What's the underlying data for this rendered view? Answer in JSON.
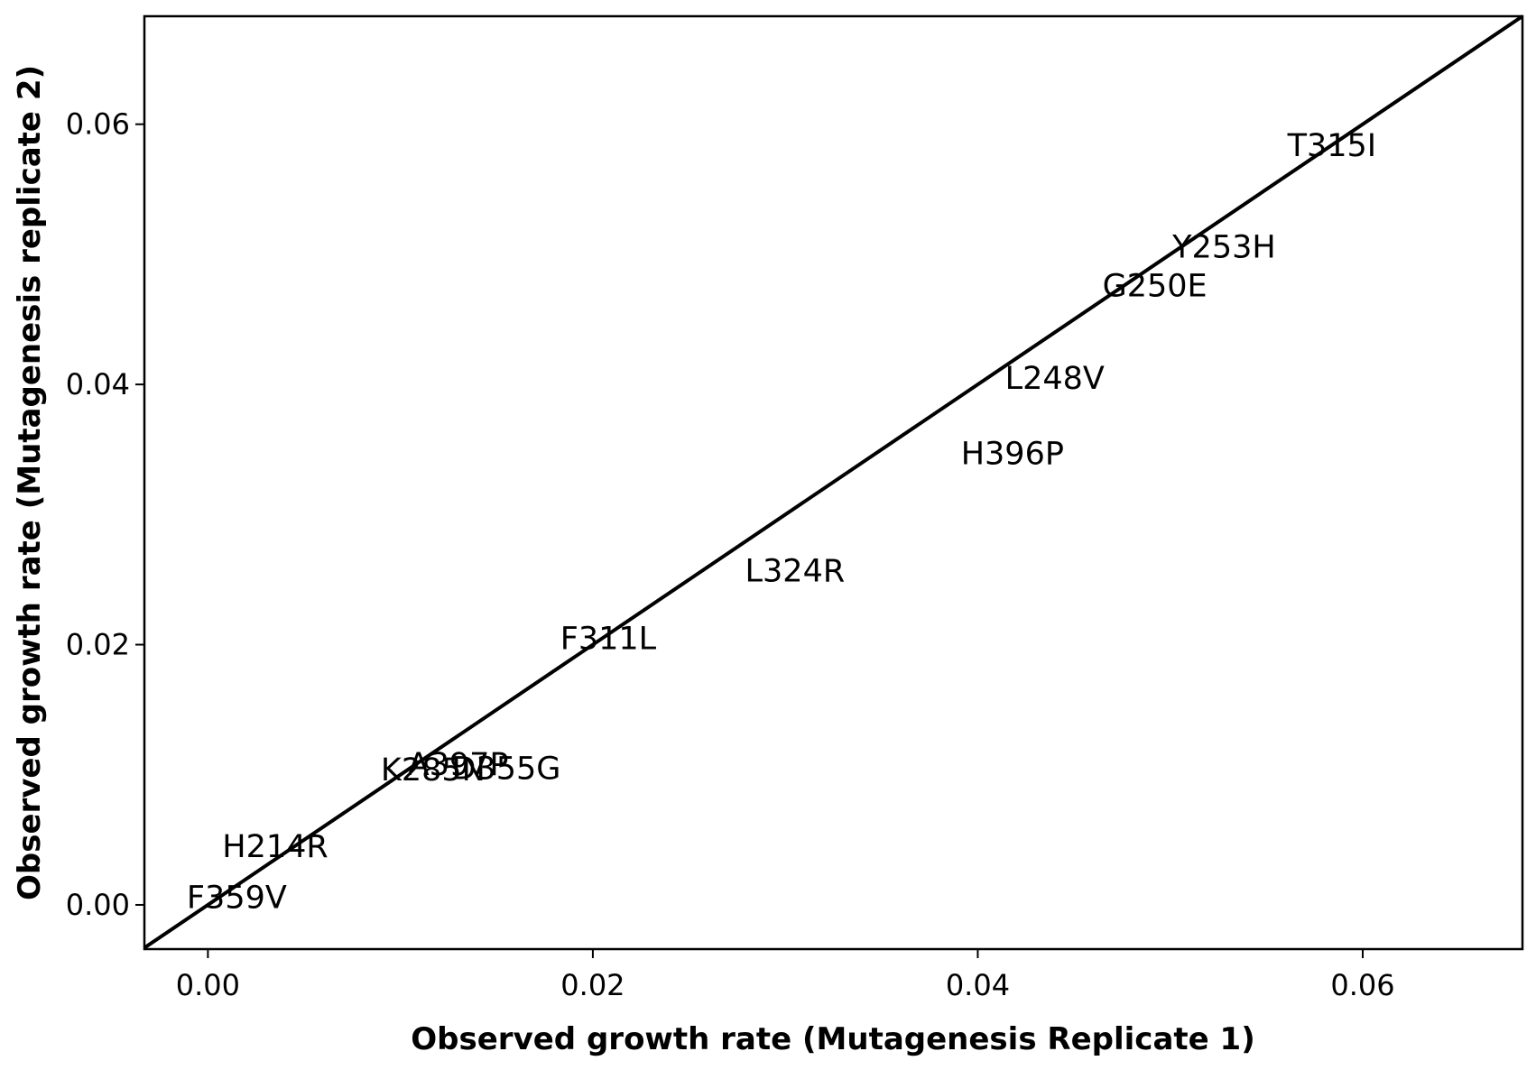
{
  "chart_data": {
    "type": "scatter",
    "title": "",
    "xlabel": "Observed growth rate (Mutagenesis Replicate 1)",
    "ylabel": "Observed growth rate (Mutagenesis replicate 2)",
    "xlim": [
      -0.0033,
      0.0683
    ],
    "ylim": [
      -0.0034,
      0.0683
    ],
    "xticks": [
      0.0,
      0.02,
      0.04,
      0.06
    ],
    "yticks": [
      0.0,
      0.02,
      0.04,
      0.06
    ],
    "xtick_labels": [
      "0.00",
      "0.02",
      "0.04",
      "0.06"
    ],
    "ytick_labels": [
      "0.00",
      "0.02",
      "0.04",
      "0.06"
    ],
    "grid": false,
    "reference_line": {
      "type": "identity",
      "slope": 1,
      "intercept": 0
    },
    "points": [
      {
        "label": "T315I",
        "x": 0.0584,
        "y": 0.0584
      },
      {
        "label": "Y253H",
        "x": 0.0528,
        "y": 0.0506
      },
      {
        "label": "G250E",
        "x": 0.0492,
        "y": 0.0476
      },
      {
        "label": "L248V",
        "x": 0.044,
        "y": 0.0405
      },
      {
        "label": "H396P",
        "x": 0.0418,
        "y": 0.0347
      },
      {
        "label": "L324R",
        "x": 0.0305,
        "y": 0.0257
      },
      {
        "label": "F311L",
        "x": 0.0208,
        "y": 0.0205
      },
      {
        "label": "K285N",
        "x": 0.0117,
        "y": 0.0104
      },
      {
        "label": "A397P",
        "x": 0.013,
        "y": 0.0108
      },
      {
        "label": "D355G",
        "x": 0.0155,
        "y": 0.0105
      },
      {
        "label": "H214R",
        "x": 0.0035,
        "y": 0.0045
      },
      {
        "label": "F359V",
        "x": 0.0015,
        "y": 0.0006
      }
    ]
  }
}
